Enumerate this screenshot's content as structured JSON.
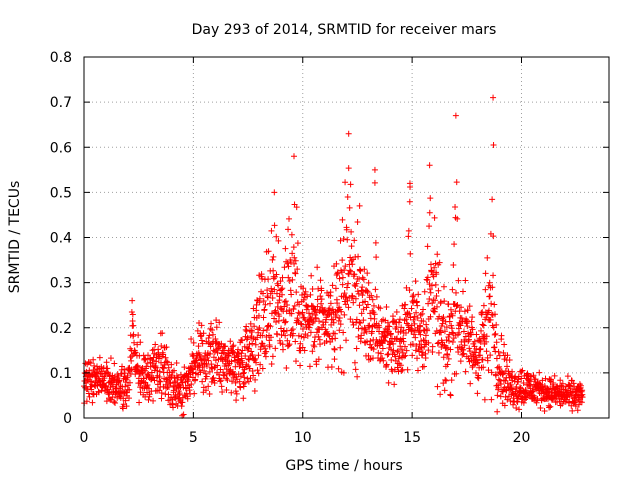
{
  "chart_data": {
    "type": "scatter",
    "title": "Day 293 of 2014, SRMTID for receiver mars",
    "xlabel": "GPS time / hours",
    "ylabel": "SRMTID / TECUs",
    "xlim": [
      0,
      24
    ],
    "ylim": [
      0,
      0.8
    ],
    "x_ticks": [
      0,
      5,
      10,
      15,
      20
    ],
    "x_tick_labels": [
      "0",
      "5",
      "10",
      "15",
      "20"
    ],
    "y_ticks": [
      0,
      0.1,
      0.2,
      0.3,
      0.4,
      0.5,
      0.6,
      0.7,
      0.8
    ],
    "y_tick_labels": [
      "0",
      "0.1",
      "0.2",
      "0.3",
      "0.4",
      "0.5",
      "0.6",
      "0.7",
      "0.8"
    ],
    "grid": true,
    "marker": "plus",
    "series": [
      {
        "name": "SRMTID",
        "color": "#ff0000",
        "profile": [
          {
            "x": 0.0,
            "level": 0.08,
            "spread": 0.03
          },
          {
            "x": 1.0,
            "level": 0.09,
            "spread": 0.03
          },
          {
            "x": 2.0,
            "level": 0.06,
            "spread": 0.03
          },
          {
            "x": 2.2,
            "level": 0.15,
            "spread": 0.06
          },
          {
            "x": 2.5,
            "level": 0.1,
            "spread": 0.04
          },
          {
            "x": 3.0,
            "level": 0.09,
            "spread": 0.03
          },
          {
            "x": 3.5,
            "level": 0.12,
            "spread": 0.05
          },
          {
            "x": 4.0,
            "level": 0.08,
            "spread": 0.03
          },
          {
            "x": 4.5,
            "level": 0.06,
            "spread": 0.03
          },
          {
            "x": 5.0,
            "level": 0.12,
            "spread": 0.04
          },
          {
            "x": 6.0,
            "level": 0.14,
            "spread": 0.04
          },
          {
            "x": 7.0,
            "level": 0.11,
            "spread": 0.04
          },
          {
            "x": 7.5,
            "level": 0.15,
            "spread": 0.05
          },
          {
            "x": 8.0,
            "level": 0.2,
            "spread": 0.07
          },
          {
            "x": 8.5,
            "level": 0.26,
            "spread": 0.1
          },
          {
            "x": 9.0,
            "level": 0.24,
            "spread": 0.08
          },
          {
            "x": 9.5,
            "level": 0.3,
            "spread": 0.12
          },
          {
            "x": 10.0,
            "level": 0.22,
            "spread": 0.06
          },
          {
            "x": 11.0,
            "level": 0.2,
            "spread": 0.06
          },
          {
            "x": 11.5,
            "level": 0.22,
            "spread": 0.06
          },
          {
            "x": 12.0,
            "level": 0.32,
            "spread": 0.12
          },
          {
            "x": 12.5,
            "level": 0.26,
            "spread": 0.09
          },
          {
            "x": 13.0,
            "level": 0.22,
            "spread": 0.06
          },
          {
            "x": 13.5,
            "level": 0.18,
            "spread": 0.05
          },
          {
            "x": 14.0,
            "level": 0.17,
            "spread": 0.05
          },
          {
            "x": 14.5,
            "level": 0.16,
            "spread": 0.05
          },
          {
            "x": 15.0,
            "level": 0.22,
            "spread": 0.07
          },
          {
            "x": 15.5,
            "level": 0.19,
            "spread": 0.05
          },
          {
            "x": 16.0,
            "level": 0.26,
            "spread": 0.1
          },
          {
            "x": 16.5,
            "level": 0.14,
            "spread": 0.06
          },
          {
            "x": 17.0,
            "level": 0.24,
            "spread": 0.09
          },
          {
            "x": 17.5,
            "level": 0.17,
            "spread": 0.06
          },
          {
            "x": 18.0,
            "level": 0.14,
            "spread": 0.05
          },
          {
            "x": 18.6,
            "level": 0.22,
            "spread": 0.1
          },
          {
            "x": 19.0,
            "level": 0.12,
            "spread": 0.05
          },
          {
            "x": 19.5,
            "level": 0.07,
            "spread": 0.03
          },
          {
            "x": 20.0,
            "level": 0.07,
            "spread": 0.03
          },
          {
            "x": 21.0,
            "level": 0.06,
            "spread": 0.02
          },
          {
            "x": 22.0,
            "level": 0.05,
            "spread": 0.02
          },
          {
            "x": 22.8,
            "level": 0.05,
            "spread": 0.02
          }
        ],
        "bursts": [
          {
            "x": 2.2,
            "width": 0.15,
            "peak": 0.26
          },
          {
            "x": 8.7,
            "width": 0.15,
            "peak": 0.5
          },
          {
            "x": 9.6,
            "width": 0.12,
            "peak": 0.58
          },
          {
            "x": 12.1,
            "width": 0.15,
            "peak": 0.63
          },
          {
            "x": 12.6,
            "width": 0.15,
            "peak": 0.47
          },
          {
            "x": 13.3,
            "width": 0.1,
            "peak": 0.55
          },
          {
            "x": 14.9,
            "width": 0.2,
            "peak": 0.52
          },
          {
            "x": 15.8,
            "width": 0.2,
            "peak": 0.56
          },
          {
            "x": 17.0,
            "width": 0.12,
            "peak": 0.67
          },
          {
            "x": 18.7,
            "width": 0.12,
            "peak": 0.71
          }
        ],
        "sample_step_hours": 0.011,
        "x_end": 22.8
      }
    ]
  }
}
